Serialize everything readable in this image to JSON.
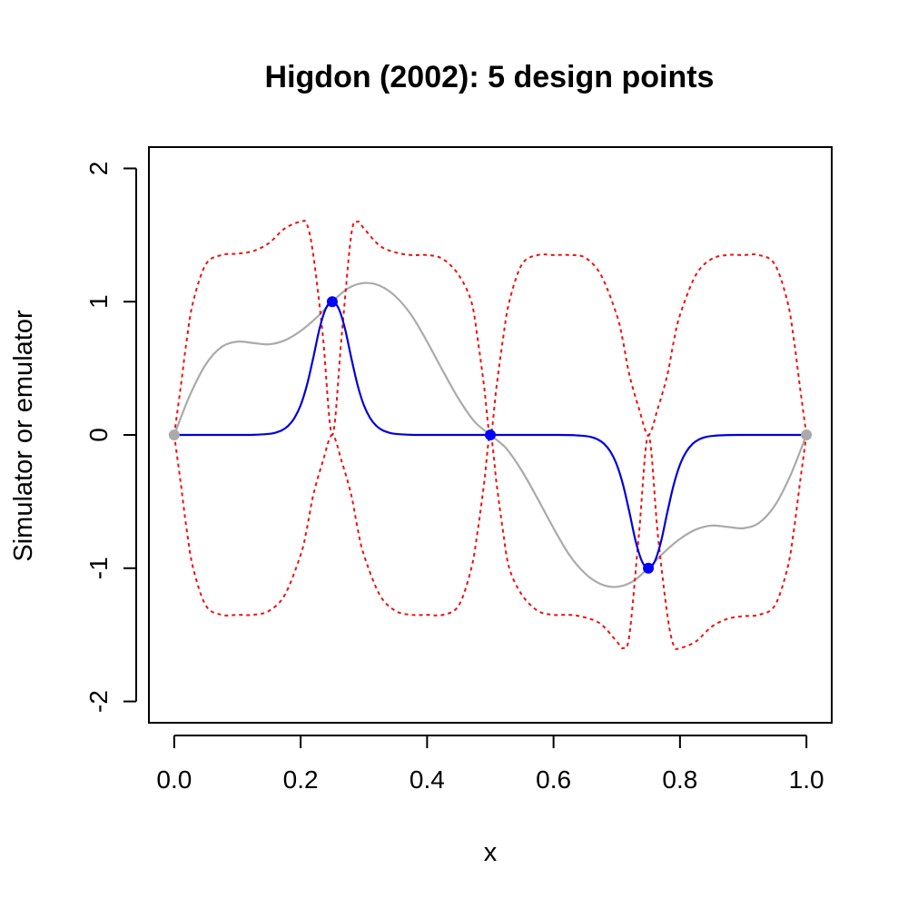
{
  "chart_data": {
    "type": "line",
    "title": "Higdon (2002):  5 design points",
    "xlabel": "x",
    "ylabel": "Simulator or emulator",
    "xlim": [
      -0.04,
      1.04
    ],
    "ylim": [
      -2.16,
      2.16
    ],
    "x_ticks": [
      0.0,
      0.2,
      0.4,
      0.6,
      0.8,
      1.0
    ],
    "x_tick_labels": [
      "0.0",
      "0.2",
      "0.4",
      "0.6",
      "0.8",
      "1.0"
    ],
    "y_ticks": [
      -2,
      -1,
      0,
      1,
      2
    ],
    "y_tick_labels": [
      "-2",
      "-1",
      "0",
      "1",
      "2"
    ],
    "grid": false,
    "series": [
      {
        "role": "simulator",
        "color": "#aaaaaa",
        "style": "solid",
        "x": [
          0.0,
          0.025,
          0.05,
          0.075,
          0.1,
          0.125,
          0.15,
          0.175,
          0.2,
          0.225,
          0.25,
          0.275,
          0.3,
          0.325,
          0.35,
          0.375,
          0.4,
          0.425,
          0.45,
          0.475,
          0.5,
          0.525,
          0.55,
          0.575,
          0.6,
          0.625,
          0.65,
          0.675,
          0.7,
          0.725,
          0.75,
          0.775,
          0.8,
          0.825,
          0.85,
          0.875,
          0.9,
          0.925,
          0.95,
          0.975,
          1.0
        ],
        "y": [
          0.0,
          0.3,
          0.53,
          0.66,
          0.7,
          0.69,
          0.68,
          0.71,
          0.78,
          0.88,
          1.0,
          1.1,
          1.14,
          1.12,
          1.04,
          0.9,
          0.7,
          0.48,
          0.27,
          0.1,
          0.0,
          -0.1,
          -0.27,
          -0.48,
          -0.7,
          -0.9,
          -1.04,
          -1.12,
          -1.14,
          -1.1,
          -1.0,
          -0.88,
          -0.78,
          -0.71,
          -0.68,
          -0.69,
          -0.7,
          -0.66,
          -0.53,
          -0.3,
          0.0
        ]
      },
      {
        "role": "emulator mean",
        "color": "#0000dd",
        "style": "solid",
        "x": [
          0.0,
          0.05,
          0.1,
          0.125,
          0.15,
          0.16,
          0.17,
          0.18,
          0.19,
          0.2,
          0.21,
          0.22,
          0.23,
          0.24,
          0.25,
          0.26,
          0.27,
          0.28,
          0.29,
          0.3,
          0.31,
          0.32,
          0.33,
          0.34,
          0.35,
          0.375,
          0.4,
          0.45,
          0.5,
          0.55,
          0.6,
          0.625,
          0.65,
          0.66,
          0.67,
          0.68,
          0.69,
          0.7,
          0.71,
          0.72,
          0.73,
          0.74,
          0.75,
          0.76,
          0.77,
          0.78,
          0.79,
          0.8,
          0.81,
          0.82,
          0.83,
          0.84,
          0.85,
          0.875,
          0.9,
          0.95,
          1.0
        ],
        "y": [
          0.0,
          0.0,
          0.0,
          0.001,
          0.008,
          0.017,
          0.034,
          0.067,
          0.126,
          0.223,
          0.375,
          0.58,
          0.8,
          0.95,
          1.0,
          0.95,
          0.8,
          0.58,
          0.375,
          0.223,
          0.126,
          0.067,
          0.034,
          0.017,
          0.008,
          0.001,
          0.0,
          0.0,
          0.0,
          0.0,
          0.0,
          -0.001,
          -0.008,
          -0.017,
          -0.034,
          -0.067,
          -0.126,
          -0.223,
          -0.375,
          -0.58,
          -0.8,
          -0.95,
          -1.0,
          -0.95,
          -0.8,
          -0.58,
          -0.375,
          -0.223,
          -0.126,
          -0.067,
          -0.034,
          -0.017,
          -0.008,
          -0.001,
          0.0,
          0.0,
          0.0
        ]
      },
      {
        "role": "upper bound",
        "color": "#ee1111",
        "style": "dotted",
        "x": [
          0.0,
          0.01,
          0.02,
          0.03,
          0.05,
          0.075,
          0.1,
          0.125,
          0.15,
          0.175,
          0.2,
          0.21,
          0.22,
          0.235,
          0.25,
          0.265,
          0.28,
          0.29,
          0.3,
          0.325,
          0.35,
          0.375,
          0.4,
          0.425,
          0.45,
          0.47,
          0.48,
          0.49,
          0.5,
          0.51,
          0.52,
          0.53,
          0.55,
          0.575,
          0.6,
          0.625,
          0.65,
          0.675,
          0.7,
          0.71,
          0.72,
          0.735,
          0.75,
          0.765,
          0.78,
          0.79,
          0.8,
          0.825,
          0.85,
          0.875,
          0.9,
          0.925,
          0.95,
          0.97,
          0.98,
          0.99,
          1.0
        ],
        "y": [
          0.0,
          0.35,
          0.72,
          1.0,
          1.28,
          1.35,
          1.36,
          1.38,
          1.44,
          1.55,
          1.6,
          1.58,
          1.35,
          0.75,
          0.0,
          0.75,
          1.5,
          1.6,
          1.55,
          1.42,
          1.37,
          1.35,
          1.35,
          1.32,
          1.2,
          1.0,
          0.72,
          0.37,
          0.0,
          0.37,
          0.72,
          1.0,
          1.28,
          1.35,
          1.35,
          1.35,
          1.33,
          1.2,
          0.9,
          0.7,
          0.45,
          0.2,
          0.0,
          0.2,
          0.45,
          0.7,
          0.9,
          1.2,
          1.32,
          1.35,
          1.35,
          1.35,
          1.28,
          1.0,
          0.72,
          0.35,
          0.0
        ]
      },
      {
        "role": "lower bound",
        "color": "#ee1111",
        "style": "dotted",
        "x": [
          0.0,
          0.01,
          0.02,
          0.03,
          0.05,
          0.075,
          0.1,
          0.125,
          0.15,
          0.175,
          0.2,
          0.21,
          0.22,
          0.235,
          0.25,
          0.265,
          0.28,
          0.29,
          0.3,
          0.325,
          0.35,
          0.375,
          0.4,
          0.425,
          0.45,
          0.47,
          0.48,
          0.49,
          0.5,
          0.51,
          0.52,
          0.53,
          0.55,
          0.575,
          0.6,
          0.625,
          0.65,
          0.675,
          0.7,
          0.71,
          0.72,
          0.735,
          0.75,
          0.765,
          0.78,
          0.79,
          0.8,
          0.825,
          0.85,
          0.875,
          0.9,
          0.925,
          0.95,
          0.97,
          0.98,
          0.99,
          1.0
        ],
        "y": [
          0.0,
          -0.35,
          -0.72,
          -1.0,
          -1.28,
          -1.35,
          -1.35,
          -1.35,
          -1.32,
          -1.2,
          -0.9,
          -0.7,
          -0.45,
          -0.2,
          0.0,
          -0.2,
          -0.45,
          -0.7,
          -0.9,
          -1.2,
          -1.32,
          -1.35,
          -1.35,
          -1.35,
          -1.28,
          -1.0,
          -0.72,
          -0.37,
          0.0,
          -0.37,
          -0.72,
          -1.0,
          -1.2,
          -1.32,
          -1.35,
          -1.35,
          -1.37,
          -1.42,
          -1.55,
          -1.6,
          -1.5,
          -0.75,
          0.0,
          -0.75,
          -1.35,
          -1.58,
          -1.6,
          -1.55,
          -1.44,
          -1.38,
          -1.36,
          -1.35,
          -1.28,
          -1.0,
          -0.72,
          -0.35,
          0.0
        ]
      }
    ],
    "design_points": {
      "x": [
        0.0,
        0.25,
        0.5,
        0.75,
        1.0
      ],
      "y": [
        0.0,
        1.0,
        0.0,
        -1.0,
        0.0
      ],
      "colors": [
        "#aaaaaa",
        "#0000ff",
        "#0000ff",
        "#0000ff",
        "#aaaaaa"
      ]
    }
  }
}
